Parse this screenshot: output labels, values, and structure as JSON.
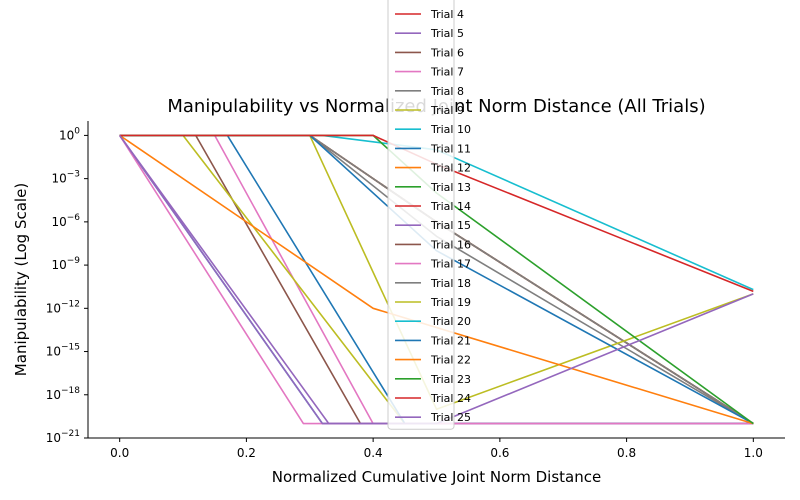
{
  "chart_data": {
    "type": "line",
    "title": "Manipulability vs Normalized Joint Norm Distance (All Trials)",
    "xlabel": "Normalized Cumulative Joint Norm Distance",
    "ylabel": "Manipulability (Log Scale)",
    "xlim": [
      -0.05,
      1.05
    ],
    "ylim": [
      1e-21,
      10.0
    ],
    "yscale": "log",
    "xticks": [
      0.0,
      0.2,
      0.4,
      0.6,
      0.8,
      1.0
    ],
    "xtick_labels": [
      "0.0",
      "0.2",
      "0.4",
      "0.6",
      "0.8",
      "1.0"
    ],
    "yticks": [
      {
        "value": 1.0,
        "base": "10",
        "exp": "0"
      },
      {
        "value": 0.001,
        "base": "10",
        "exp": "−3"
      },
      {
        "value": 1e-06,
        "base": "10",
        "exp": "−6"
      },
      {
        "value": 1e-09,
        "base": "10",
        "exp": "−9"
      },
      {
        "value": 1e-12,
        "base": "10",
        "exp": "−12"
      },
      {
        "value": 1e-15,
        "base": "10",
        "exp": "−15"
      },
      {
        "value": 1e-18,
        "base": "10",
        "exp": "−18"
      },
      {
        "value": 1e-21,
        "base": "10",
        "exp": "−21"
      }
    ],
    "grid": false,
    "legend_position": "top-center",
    "series": [
      {
        "name": "Trial 4",
        "color": "#d62728",
        "x": [
          0.0,
          0.3,
          0.5,
          1.0
        ],
        "y": [
          1,
          1,
          1e-06,
          1e-20
        ]
      },
      {
        "name": "Trial 5",
        "color": "#9467bd",
        "x": [
          0.0,
          0.32,
          0.5,
          1.0
        ],
        "y": [
          1,
          1e-20,
          1e-20,
          1e-20
        ]
      },
      {
        "name": "Trial 6",
        "color": "#8c564b",
        "x": [
          0.0,
          0.12,
          0.38,
          1.0
        ],
        "y": [
          1,
          1,
          1e-20,
          1e-20
        ]
      },
      {
        "name": "Trial 7",
        "color": "#e377c2",
        "x": [
          0.0,
          0.15,
          0.4,
          1.0
        ],
        "y": [
          1,
          1,
          1e-20,
          1e-20
        ]
      },
      {
        "name": "Trial 8",
        "color": "#7f7f7f",
        "x": [
          0.0,
          0.3,
          0.5,
          1.0
        ],
        "y": [
          1,
          1,
          1e-07,
          1e-20
        ]
      },
      {
        "name": "Trial 9",
        "color": "#bcbd22",
        "x": [
          0.0,
          0.1,
          0.45,
          1.0
        ],
        "y": [
          1,
          1,
          1e-20,
          1e-20
        ]
      },
      {
        "name": "Trial 10",
        "color": "#17becf",
        "x": [
          0.0,
          0.32,
          1.0
        ],
        "y": [
          1,
          1e-20,
          1e-20
        ]
      },
      {
        "name": "Trial 11",
        "color": "#1f77b4",
        "x": [
          0.0,
          0.17,
          0.45,
          1.0
        ],
        "y": [
          1,
          1,
          1e-20,
          1e-20
        ]
      },
      {
        "name": "Trial 12",
        "color": "#ff7f0e",
        "x": [
          0.0,
          0.3,
          0.5,
          1.0
        ],
        "y": [
          1,
          1,
          1e-06,
          1e-20
        ]
      },
      {
        "name": "Trial 13",
        "color": "#2ca02c",
        "x": [
          0.0,
          0.3,
          0.5,
          1.0
        ],
        "y": [
          1,
          1,
          1e-06,
          1e-20
        ]
      },
      {
        "name": "Trial 14",
        "color": "#d62728",
        "x": [
          0.0,
          0.3,
          0.5,
          1.0
        ],
        "y": [
          1,
          1,
          1e-06,
          1e-20
        ]
      },
      {
        "name": "Trial 15",
        "color": "#9467bd",
        "x": [
          0.0,
          0.33,
          1.0
        ],
        "y": [
          1,
          1e-20,
          1e-20
        ]
      },
      {
        "name": "Trial 16",
        "color": "#8c564b",
        "x": [
          0.0,
          0.3,
          0.5,
          1.0
        ],
        "y": [
          1,
          1,
          1e-06,
          1e-20
        ]
      },
      {
        "name": "Trial 17",
        "color": "#e377c2",
        "x": [
          0.0,
          0.29,
          1.0
        ],
        "y": [
          1,
          1e-20,
          1e-20
        ]
      },
      {
        "name": "Trial 18",
        "color": "#7f7f7f",
        "x": [
          0.0,
          0.3,
          0.5,
          1.0
        ],
        "y": [
          1,
          1,
          1e-06,
          1e-20
        ]
      },
      {
        "name": "Trial 19",
        "color": "#bcbd22",
        "x": [
          0.0,
          0.3,
          0.5,
          1.0
        ],
        "y": [
          1,
          1,
          1e-19,
          1e-11
        ]
      },
      {
        "name": "Trial 20",
        "color": "#17becf",
        "x": [
          0.0,
          0.32,
          0.5,
          1.0
        ],
        "y": [
          1,
          1,
          0.1,
          2e-11
        ]
      },
      {
        "name": "Trial 21",
        "color": "#1f77b4",
        "x": [
          0.0,
          0.3,
          0.5,
          1.0
        ],
        "y": [
          1,
          1,
          1e-08,
          1e-20
        ]
      },
      {
        "name": "Trial 22",
        "color": "#ff7f0e",
        "x": [
          0.0,
          0.4,
          1.0
        ],
        "y": [
          1,
          1e-12,
          1e-20
        ]
      },
      {
        "name": "Trial 23",
        "color": "#2ca02c",
        "x": [
          0.0,
          0.4,
          0.5,
          1.0
        ],
        "y": [
          1,
          1,
          0.0001,
          1e-20
        ]
      },
      {
        "name": "Trial 24",
        "color": "#d62728",
        "x": [
          0.0,
          0.4,
          0.5,
          1.0
        ],
        "y": [
          1,
          1,
          0.01,
          1.5e-11
        ]
      },
      {
        "name": "Trial 25",
        "color": "#9467bd",
        "x": [
          0.0,
          0.32,
          0.5,
          1.0
        ],
        "y": [
          1,
          1e-20,
          1e-20,
          1e-11
        ]
      }
    ]
  }
}
